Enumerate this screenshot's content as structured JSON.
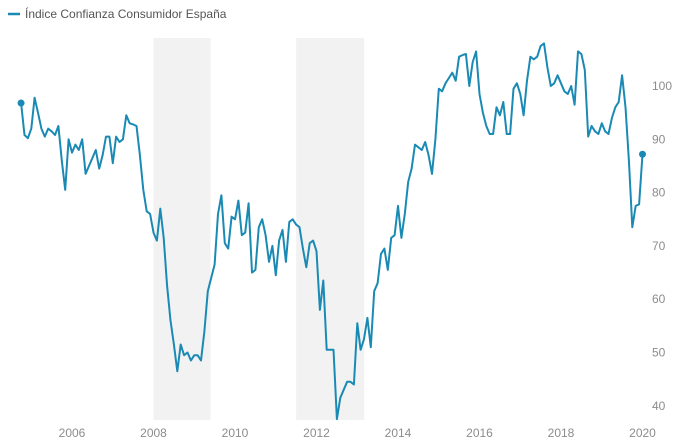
{
  "chart_data": {
    "type": "line",
    "title": "",
    "xlabel": "",
    "ylabel": "",
    "legend": {
      "position": "top-left",
      "entries": [
        "Índice Confianza Consumidor España"
      ]
    },
    "colors": {
      "line": "#1a8ab4",
      "shade": "#f2f2f2",
      "tick_text": "#8c8c8c",
      "legend_text": "#555555"
    },
    "grid": false,
    "ylim": [
      38,
      108
    ],
    "yticks": [
      40,
      50,
      60,
      70,
      80,
      90,
      100
    ],
    "xticks": [
      2006,
      2008,
      2010,
      2012,
      2014,
      2016,
      2018,
      2020
    ],
    "x_start": "2004-10",
    "x_frequency": "monthly",
    "shaded_periods": [
      {
        "start": 2008.0,
        "end": 2009.4
      },
      {
        "start": 2011.5,
        "end": 2013.17
      }
    ],
    "series": [
      {
        "name": "Índice Confianza Consumidor España",
        "values": [
          96.8,
          90.8,
          90.2,
          92,
          97.8,
          95,
          92,
          90.5,
          92,
          91.5,
          90.8,
          92.5,
          86,
          80.5,
          90,
          87.5,
          89,
          88,
          90,
          83.5,
          85,
          86.5,
          88,
          84.5,
          87,
          90.5,
          90.5,
          85.5,
          90.5,
          89.5,
          90,
          94.5,
          93,
          92.8,
          92.5,
          87,
          80.5,
          76.5,
          76,
          72.5,
          71,
          77,
          71.5,
          62.5,
          56,
          51.5,
          46.5,
          51.5,
          49.5,
          50,
          48.5,
          49.5,
          49.5,
          48.5,
          54,
          61.5,
          64,
          66.5,
          76,
          79.5,
          70.5,
          69.5,
          75.5,
          75,
          78.5,
          72,
          72.5,
          78,
          65,
          65.5,
          73.5,
          75,
          72,
          67,
          70,
          64.5,
          71,
          73,
          67,
          74.5,
          75,
          74,
          73.5,
          69.5,
          66,
          70.5,
          71,
          69,
          58,
          63.5,
          50.5,
          50.5,
          50.5,
          37.5,
          41.5,
          43,
          44.5,
          44.5,
          44,
          55.5,
          50.5,
          52.5,
          56.5,
          51,
          61.5,
          63,
          68.5,
          69.5,
          65.5,
          71.5,
          72,
          77.5,
          71.5,
          76,
          82,
          84.5,
          89,
          88.5,
          88,
          89.5,
          87,
          83.5,
          90,
          99.5,
          99,
          100.5,
          101.5,
          102.5,
          101,
          105.5,
          105.8,
          106,
          100,
          104.5,
          106.5,
          98.5,
          95,
          92.5,
          91,
          91,
          96,
          94.5,
          97,
          91,
          91,
          99.5,
          100.5,
          98.5,
          94.5,
          101,
          105.5,
          105,
          105.5,
          107.5,
          108,
          103.5,
          100,
          100.5,
          102,
          100.5,
          99,
          98.5,
          100,
          96.5,
          106.5,
          106,
          103,
          90.5,
          92.5,
          91.5,
          91,
          93,
          91.5,
          91,
          94,
          96,
          97,
          102,
          96,
          86,
          73.5,
          77.5,
          77.8,
          87.2
        ]
      }
    ]
  }
}
